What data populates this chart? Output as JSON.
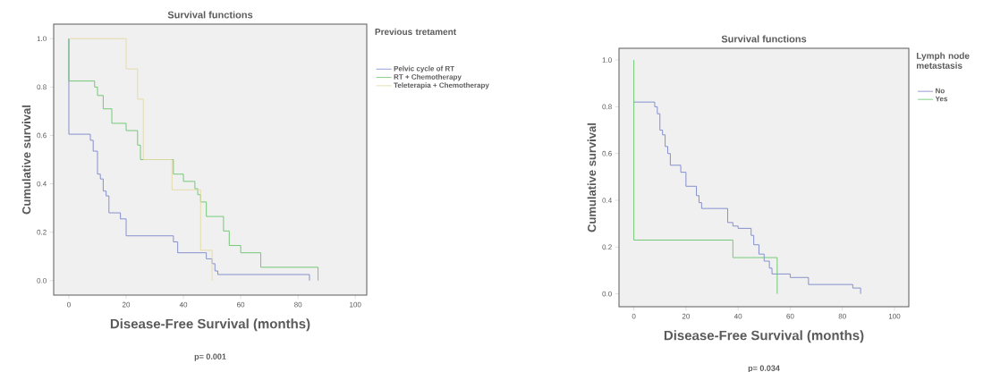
{
  "chart_data": [
    {
      "type": "step",
      "title": "Survival functions",
      "xlabel": "Disease-Free Survival (months)",
      "ylabel": "Cumulative survival",
      "legend_title": "Previous tretament",
      "legend": "right",
      "xlim": [
        -5.3,
        104
      ],
      "ylim": [
        -0.06,
        1.06
      ],
      "xticks": [
        0,
        20,
        40,
        60,
        80,
        100
      ],
      "yticks": [
        {
          "value": 0,
          "label": "0.0"
        },
        {
          "value": 0.2,
          "label": "0.2"
        },
        {
          "value": 0.4,
          "label": "0.4"
        },
        {
          "value": 0.6,
          "label": "0.6"
        },
        {
          "value": 0.8,
          "label": "0.8"
        },
        {
          "value": 1,
          "label": "1.0"
        }
      ],
      "annotations": [
        "p= 0.001"
      ],
      "series": [
        {
          "name": "Pelvic cycle of RT",
          "color": "#7b86c9",
          "x": [
            0,
            0,
            7.5,
            8.5,
            10,
            11,
            12,
            13,
            14,
            18,
            20,
            36.5,
            38,
            48,
            50,
            51,
            52,
            84
          ],
          "values": [
            1,
            0.605,
            0.58,
            0.535,
            0.44,
            0.42,
            0.37,
            0.35,
            0.28,
            0.255,
            0.185,
            0.16,
            0.115,
            0.09,
            0.07,
            0.04,
            0.025,
            0
          ]
        },
        {
          "name": "RT + Chemotherapy",
          "color": "#66c46a",
          "x": [
            0,
            0,
            9,
            10,
            12,
            15,
            20,
            24,
            25,
            36.5,
            40,
            44,
            45,
            46,
            48,
            54,
            56,
            60,
            67,
            87
          ],
          "values": [
            1,
            0.825,
            0.8,
            0.765,
            0.71,
            0.65,
            0.62,
            0.56,
            0.5,
            0.44,
            0.41,
            0.38,
            0.355,
            0.325,
            0.265,
            0.205,
            0.145,
            0.115,
            0.055,
            0
          ]
        },
        {
          "name": "Teleterapia + Chemotherapy",
          "color": "#e3d9a0",
          "x": [
            0,
            20,
            24,
            26,
            36,
            46,
            50
          ],
          "values": [
            1,
            0.875,
            0.75,
            0.5,
            0.375,
            0.125,
            0
          ]
        }
      ]
    },
    {
      "type": "step",
      "title": "Survival functions",
      "xlabel": "Disease-Free Survival (months)",
      "ylabel": "Cumulative survival",
      "legend_title": "Lymph node metastasis",
      "legend": "right",
      "xlim": [
        -5.7,
        105.5
      ],
      "ylim": [
        -0.055,
        1.05
      ],
      "xticks": [
        0,
        20,
        40,
        60,
        80,
        100
      ],
      "yticks": [
        {
          "value": 0,
          "label": "0.0"
        },
        {
          "value": 0.2,
          "label": "0.2"
        },
        {
          "value": 0.4,
          "label": "0.4"
        },
        {
          "value": 0.6,
          "label": "0.6"
        },
        {
          "value": 0.8,
          "label": "0.8"
        },
        {
          "value": 1,
          "label": "1.0"
        }
      ],
      "annotations": [
        "p= 0.034"
      ],
      "series": [
        {
          "name": "No",
          "color": "#7b86c9",
          "x": [
            0,
            8,
            9,
            10,
            11,
            12,
            13,
            14,
            18,
            20,
            24,
            25,
            26,
            36,
            38,
            40,
            45,
            46,
            48,
            50,
            52,
            53,
            60,
            67,
            84,
            87
          ],
          "values": [
            0.82,
            0.8,
            0.77,
            0.7,
            0.68,
            0.63,
            0.6,
            0.55,
            0.52,
            0.46,
            0.42,
            0.39,
            0.365,
            0.305,
            0.29,
            0.28,
            0.25,
            0.21,
            0.17,
            0.14,
            0.11,
            0.085,
            0.07,
            0.04,
            0.025,
            0
          ]
        },
        {
          "name": "Yes",
          "color": "#66c46a",
          "x": [
            0,
            0,
            38,
            55
          ],
          "values": [
            1,
            0.23,
            0.155,
            0
          ]
        }
      ]
    }
  ]
}
